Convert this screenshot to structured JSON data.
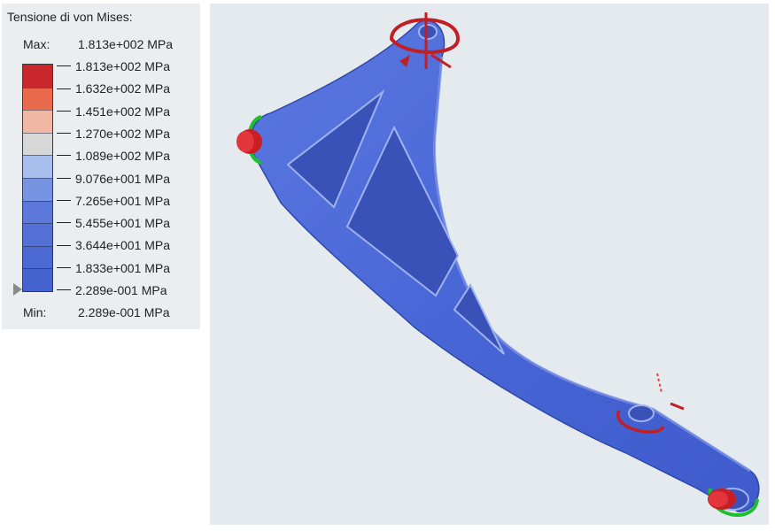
{
  "legend": {
    "title": "Tensione di von Mises:",
    "max_key": "Max:",
    "max_value": "1.813e+002 MPa",
    "min_key": "Min:",
    "min_value": "2.289e-001 MPa",
    "ticks": [
      "1.813e+002 MPa",
      "1.632e+002 MPa",
      "1.451e+002 MPa",
      "1.270e+002 MPa",
      "1.089e+002 MPa",
      "9.076e+001 MPa",
      "7.265e+001 MPa",
      "5.455e+001 MPa",
      "3.644e+001 MPa",
      "1.833e+001 MPa",
      "2.289e-001 MPa"
    ],
    "band_colors": [
      "#c8282c",
      "#ea6a4e",
      "#f0b8a4",
      "#d7d7d7",
      "#a9bfed",
      "#7893e2",
      "#5b78da",
      "#5370d6",
      "#4b69d2",
      "#4463cf"
    ],
    "slider_icon": "triangle-right-icon"
  },
  "viewport": {
    "background_color": "#e4eaee",
    "part_color": "#4a66d6",
    "constraint_colors": {
      "pin": "#d81f26",
      "rotation_arrow": "#1fbf2f",
      "load_arrow": "#c21f24"
    }
  }
}
